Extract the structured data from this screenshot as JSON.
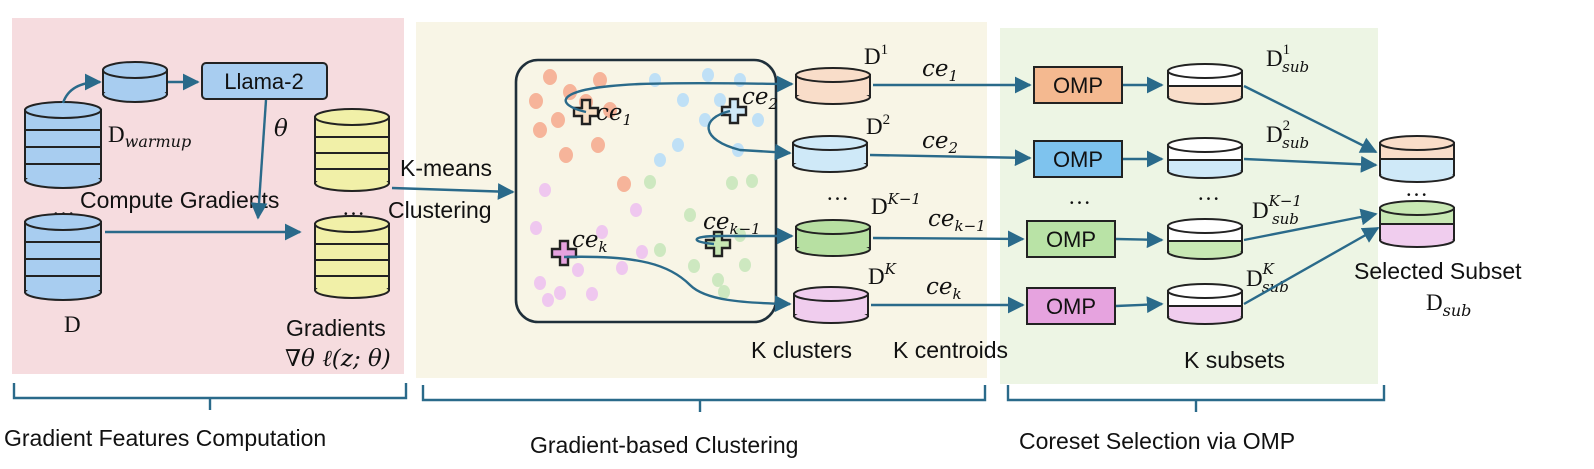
{
  "sections": {
    "gradient_features": {
      "caption": "Gradient Features Computation",
      "d_warmup": "D",
      "d_warmup_sub": "warmup",
      "model": "Llama-2",
      "theta": "θ",
      "compute_gradients": "Compute Gradients",
      "ellipsis": "…",
      "d_label": "D",
      "gradients_label": "Gradients",
      "gradient_formula": "∇θ ℓ(z; θ)"
    },
    "clustering": {
      "caption": "Gradient-based Clustering",
      "kmeans_line1": "K-means",
      "kmeans_line2": "Clustering",
      "centroids": [
        {
          "base": "ce",
          "sub": "1"
        },
        {
          "base": "ce",
          "sub": "2"
        },
        {
          "base": "ce",
          "sub": "k−1"
        },
        {
          "base": "ce",
          "sub": "k"
        }
      ],
      "clusters": [
        {
          "base": "D",
          "sup": "1"
        },
        {
          "base": "D",
          "sup": "2"
        },
        {
          "base": "D",
          "sup": "K−1"
        },
        {
          "base": "D",
          "sup": "K"
        }
      ],
      "ellipsis": "…",
      "k_clusters": "K clusters",
      "k_centroids": "K centroids"
    },
    "coreset": {
      "caption": "Coreset Selection via OMP",
      "omp_label": "OMP",
      "subsets": [
        {
          "base": "D",
          "sup": "1",
          "sub": "sub"
        },
        {
          "base": "D",
          "sup": "2",
          "sub": "sub"
        },
        {
          "base": "D",
          "sup": "K−1",
          "sub": "sub"
        },
        {
          "base": "D",
          "sup": "K",
          "sub": "sub"
        }
      ],
      "ellipsis": "…",
      "k_subsets": "K subsets",
      "selected_subset": "Selected Subset",
      "d_sub_base": "D",
      "d_sub_sub": "sub"
    }
  },
  "colors": {
    "panel_red": "#f6dcdf",
    "panel_yellow": "#f8f5e6",
    "panel_green": "#edf5e4",
    "blue_db": "#a8cdf0",
    "yellow_db": "#f1f0a8",
    "orange": "#f9ddc9",
    "lightblue": "#cfe9f8",
    "green": "#c8e8b4",
    "pink": "#f0cdee",
    "omp_orange": "#f4b990",
    "omp_blue": "#7ec3ee",
    "omp_green": "#b9e3a6",
    "omp_pink": "#e6a3df",
    "arrow": "#2a6a8a",
    "brace": "#2a6a8a"
  }
}
